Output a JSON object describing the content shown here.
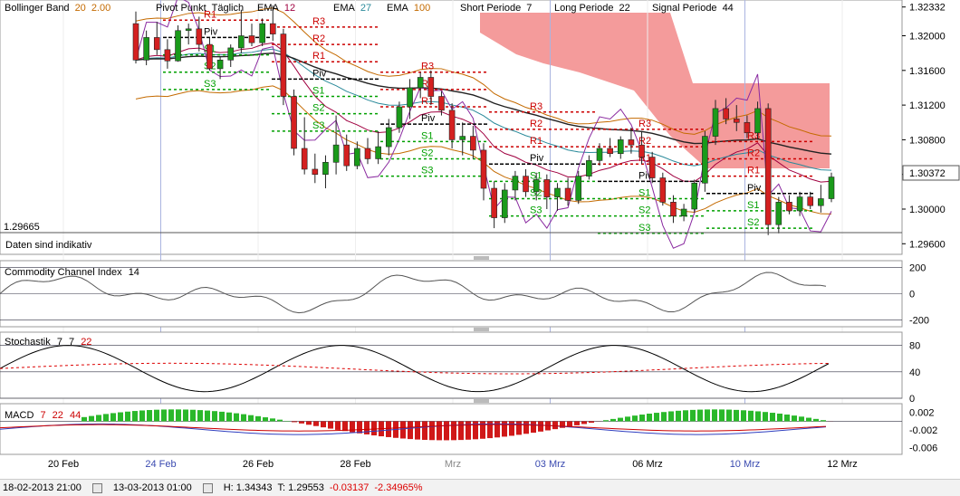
{
  "header": {
    "items": [
      {
        "label": "Bollinger Band",
        "params": [
          "20",
          "2.00"
        ],
        "color": "#c46a00"
      },
      {
        "label": "Pivot Punkt",
        "params": [
          "Täglich"
        ],
        "color": "#000000"
      },
      {
        "label": "EMA",
        "params": [
          "12"
        ],
        "color": "#a00040"
      },
      {
        "label": "EMA",
        "params": [
          "27"
        ],
        "color": "#2a8a9a"
      },
      {
        "label": "EMA",
        "params": [
          "100"
        ],
        "color": "#c46a00"
      },
      {
        "label": "Short Periode",
        "params": [
          "7"
        ],
        "color": "#000000"
      },
      {
        "label": "Long Periode",
        "params": [
          "22"
        ],
        "color": "#000000"
      },
      {
        "label": "Signal Periode",
        "params": [
          "44"
        ],
        "color": "#000000"
      }
    ]
  },
  "main_panel": {
    "note": "Daten sind indikativ",
    "current_price": "1.30372",
    "ref_level": "1.29665",
    "yticks": [
      "1.32332",
      "1.32000",
      "1.31600",
      "1.31200",
      "1.30800",
      "1.30400",
      "1.30000",
      "1.29600"
    ]
  },
  "cci_panel": {
    "title": "Commodity Channel Index",
    "params": [
      "14"
    ],
    "yticks": [
      "200",
      "0",
      "-200"
    ]
  },
  "stoch_panel": {
    "title": "Stochastik",
    "params": [
      "7",
      "7",
      "22"
    ],
    "yticks": [
      "80",
      "40",
      "0"
    ]
  },
  "macd_panel": {
    "title": "MACD",
    "params": [
      "7",
      "22",
      "44"
    ],
    "yticks": [
      "0.002",
      "-0.002",
      "-0.006"
    ]
  },
  "xaxis": {
    "ticks": [
      {
        "label": "20 Feb",
        "color": "#000000"
      },
      {
        "label": "24 Feb",
        "color": "#3a4ab0"
      },
      {
        "label": "26 Feb",
        "color": "#000000"
      },
      {
        "label": "28 Feb",
        "color": "#000000"
      },
      {
        "label": "Mrz",
        "color": "#888888"
      },
      {
        "label": "03 Mrz",
        "color": "#3a4ab0"
      },
      {
        "label": "06 Mrz",
        "color": "#000000"
      },
      {
        "label": "10 Mrz",
        "color": "#3a4ab0"
      },
      {
        "label": "12 Mrz",
        "color": "#000000"
      }
    ]
  },
  "status": {
    "start": "18-02-2013 21:00",
    "end": "13-03-2013 01:00",
    "high": "H: 1.34343",
    "low": "T: 1.29553",
    "change": "-0.03137",
    "change_pct": "-2.34965%"
  },
  "pivot_labels": {
    "r2": "R2",
    "r1": "R1",
    "r3": "R3",
    "piv": "Piv",
    "s1": "S1",
    "s2": "S2",
    "s3": "S3"
  },
  "colors": {
    "up": "#1a9a1a",
    "down": "#d42020",
    "cloud": "#f08080",
    "pivot_r": "#cc0000",
    "pivot_s": "#00a000"
  },
  "chart_data": {
    "type": "candlestick",
    "x_range": [
      "18-02-2013 21:00",
      "13-03-2013 01:00"
    ],
    "ylim": [
      1.2953,
      1.3235
    ],
    "last": 1.30372,
    "candles": [
      [
        1.3214,
        1.3228,
        1.3168,
        1.3172
      ],
      [
        1.3172,
        1.3206,
        1.3166,
        1.3198
      ],
      [
        1.3198,
        1.3216,
        1.3178,
        1.3184
      ],
      [
        1.3184,
        1.3196,
        1.3162,
        1.3171
      ],
      [
        1.3171,
        1.3212,
        1.317,
        1.3206
      ],
      [
        1.3206,
        1.3214,
        1.319,
        1.3208
      ],
      [
        1.3208,
        1.3222,
        1.3182,
        1.319
      ],
      [
        1.319,
        1.3198,
        1.316,
        1.3162
      ],
      [
        1.3162,
        1.3176,
        1.315,
        1.3172
      ],
      [
        1.3172,
        1.319,
        1.3164,
        1.3186
      ],
      [
        1.3186,
        1.323,
        1.318,
        1.32
      ],
      [
        1.32,
        1.3214,
        1.3188,
        1.3192
      ],
      [
        1.3192,
        1.322,
        1.3188,
        1.3214
      ],
      [
        1.3214,
        1.3235,
        1.3194,
        1.3202
      ],
      [
        1.3202,
        1.3208,
        1.312,
        1.313
      ],
      [
        1.313,
        1.3138,
        1.3062,
        1.307
      ],
      [
        1.307,
        1.3106,
        1.304,
        1.3046
      ],
      [
        1.3046,
        1.3064,
        1.303,
        1.304
      ],
      [
        1.304,
        1.3062,
        1.3024,
        1.3054
      ],
      [
        1.3054,
        1.3108,
        1.304,
        1.3074
      ],
      [
        1.3074,
        1.3086,
        1.3044,
        1.305
      ],
      [
        1.305,
        1.3078,
        1.3046,
        1.307
      ],
      [
        1.307,
        1.3082,
        1.3052,
        1.3058
      ],
      [
        1.3058,
        1.309,
        1.3052,
        1.3072
      ],
      [
        1.3072,
        1.3104,
        1.3062,
        1.3094
      ],
      [
        1.3094,
        1.3124,
        1.3088,
        1.3118
      ],
      [
        1.3118,
        1.315,
        1.3104,
        1.314
      ],
      [
        1.314,
        1.3158,
        1.3128,
        1.3152
      ],
      [
        1.3152,
        1.316,
        1.312,
        1.313
      ],
      [
        1.313,
        1.3136,
        1.3108,
        1.3114
      ],
      [
        1.3114,
        1.3122,
        1.307,
        1.308
      ],
      [
        1.308,
        1.31,
        1.3062,
        1.3084
      ],
      [
        1.3084,
        1.3096,
        1.3058,
        1.3068
      ],
      [
        1.3068,
        1.3076,
        1.301,
        1.3024
      ],
      [
        1.3024,
        1.3032,
        1.2978,
        1.299
      ],
      [
        1.299,
        1.303,
        1.2984,
        1.3022
      ],
      [
        1.3022,
        1.3044,
        1.301,
        1.3038
      ],
      [
        1.3038,
        1.3046,
        1.3014,
        1.302
      ],
      [
        1.302,
        1.3042,
        1.301,
        1.3034
      ],
      [
        1.3034,
        1.304,
        1.3,
        1.3014
      ],
      [
        1.3014,
        1.303,
        1.2998,
        1.3024
      ],
      [
        1.3024,
        1.3036,
        1.3004,
        1.301
      ],
      [
        1.301,
        1.3044,
        1.3006,
        1.3038
      ],
      [
        1.3038,
        1.3062,
        1.3034,
        1.3056
      ],
      [
        1.3056,
        1.3076,
        1.305,
        1.307
      ],
      [
        1.307,
        1.3082,
        1.306,
        1.3064
      ],
      [
        1.3064,
        1.3084,
        1.3058,
        1.308
      ],
      [
        1.308,
        1.3094,
        1.3064,
        1.3074
      ],
      [
        1.3074,
        1.309,
        1.3052,
        1.306
      ],
      [
        1.306,
        1.3066,
        1.303,
        1.3036
      ],
      [
        1.3036,
        1.3042,
        1.3004,
        1.3008
      ],
      [
        1.3008,
        1.3016,
        1.2984,
        1.2992
      ],
      [
        1.2992,
        1.3006,
        1.2986,
        1.3
      ],
      [
        1.3,
        1.3034,
        1.2996,
        1.303
      ],
      [
        1.303,
        1.309,
        1.302,
        1.3084
      ],
      [
        1.3084,
        1.3126,
        1.3074,
        1.3116
      ],
      [
        1.3116,
        1.3128,
        1.3098,
        1.3104
      ],
      [
        1.3104,
        1.312,
        1.309,
        1.31
      ],
      [
        1.31,
        1.3108,
        1.3082,
        1.3088
      ],
      [
        1.3088,
        1.3124,
        1.308,
        1.3116
      ],
      [
        1.3116,
        1.3122,
        1.297,
        1.2982
      ],
      [
        1.2982,
        1.3014,
        1.2972,
        1.3008
      ],
      [
        1.3008,
        1.3016,
        1.2994,
        1.2998
      ],
      [
        1.2998,
        1.302,
        1.2992,
        1.3014
      ],
      [
        1.3014,
        1.302,
        1.3,
        1.3004
      ],
      [
        1.3004,
        1.3028,
        1.2996,
        1.3012
      ],
      [
        1.3012,
        1.3042,
        1.3008,
        1.3037
      ]
    ]
  }
}
